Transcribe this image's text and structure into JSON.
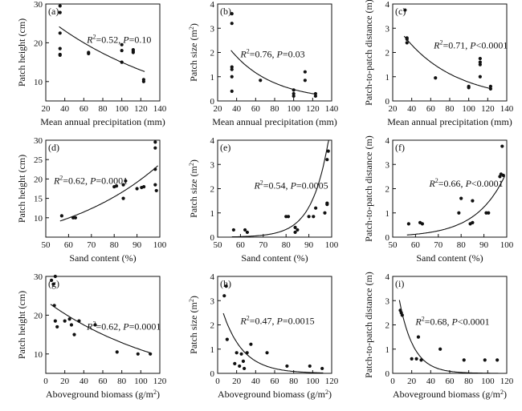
{
  "chart_data": [
    {
      "type": "scatter",
      "panel_label": "(a)",
      "xlabel": "Mean annual precipitation (mm)",
      "ylabel": "Patch height (cm)",
      "xlim": [
        20,
        140
      ],
      "ylim": [
        5,
        30
      ],
      "xticks": [
        20,
        40,
        60,
        80,
        100,
        120,
        140
      ],
      "yticks": [
        10,
        20,
        30
      ],
      "x": [
        35,
        35,
        35,
        35,
        35,
        35,
        65,
        65,
        100,
        100,
        100,
        112,
        112,
        112,
        123,
        123
      ],
      "y": [
        29.5,
        27.8,
        22.5,
        18.5,
        17,
        16.8,
        17.5,
        17.2,
        19.5,
        18,
        15,
        18.2,
        17.8,
        17.5,
        10.5,
        10
      ],
      "fit": {
        "type": "exponential",
        "a": 30.9,
        "b": -0.00725
      },
      "stat": {
        "r2_label": "R",
        "r2_sup": "2",
        "r2_value": "=0.52, ",
        "p_label": "P",
        "p_value": "=0.10"
      },
      "grid": false,
      "legend": "none"
    },
    {
      "type": "scatter",
      "panel_label": "(b)",
      "xlabel": "Mean annual precipitation (mm)",
      "ylabel": "Patch size (m",
      "ylabel_sup": "2",
      "ylabel_tail": ")",
      "xlim": [
        20,
        140
      ],
      "ylim": [
        0,
        4
      ],
      "xticks": [
        20,
        40,
        60,
        80,
        100,
        120,
        140
      ],
      "yticks": [
        0,
        1,
        2,
        3,
        4
      ],
      "x": [
        35,
        35,
        35,
        35,
        35,
        35,
        65,
        100,
        100,
        100,
        112,
        112,
        123,
        123
      ],
      "y": [
        3.6,
        3.2,
        1.4,
        1.3,
        1.0,
        0.4,
        0.85,
        0.45,
        0.3,
        0.2,
        1.2,
        0.85,
        0.3,
        0.2
      ],
      "fit": {
        "type": "exponential",
        "a": 4.49,
        "b": -0.0225
      },
      "stat": {
        "r2_label": "R",
        "r2_sup": "2",
        "r2_value": "=0.76, ",
        "p_label": "P",
        "p_value": "=0.03"
      },
      "grid": false,
      "legend": "none"
    },
    {
      "type": "scatter",
      "panel_label": "(c)",
      "xlabel": "Mean annual precipitation (mm)",
      "ylabel": "Patch-to-patch distance (m)",
      "xlim": [
        20,
        140
      ],
      "ylim": [
        0,
        4
      ],
      "xticks": [
        20,
        40,
        60,
        80,
        100,
        120,
        140
      ],
      "yticks": [
        0,
        1,
        2,
        3,
        4
      ],
      "x": [
        33,
        35,
        35,
        35,
        65,
        100,
        100,
        112,
        112,
        112,
        112,
        123,
        123
      ],
      "y": [
        3.75,
        2.6,
        2.55,
        2.4,
        0.95,
        0.6,
        0.55,
        1.75,
        1.6,
        1.5,
        1.0,
        0.6,
        0.5
      ],
      "fit": {
        "type": "exponential",
        "a": 4.79,
        "b": -0.0182
      },
      "stat": {
        "r2_label": "R",
        "r2_sup": "2",
        "r2_value": "=0.71, ",
        "p_label": "P",
        "p_value": "<0.0001"
      },
      "grid": false,
      "legend": "none"
    },
    {
      "type": "scatter",
      "panel_label": "(d)",
      "xlabel": "Sand content (%)",
      "ylabel": "Patch height (cm)",
      "xlim": [
        50,
        100
      ],
      "ylim": [
        5,
        30
      ],
      "xticks": [
        50,
        60,
        70,
        80,
        90,
        100
      ],
      "yticks": [
        10,
        15,
        20,
        25,
        30
      ],
      "x": [
        57,
        62,
        63,
        80,
        81,
        84,
        84,
        85,
        90,
        92,
        93,
        98,
        98,
        98,
        98,
        98.5
      ],
      "y": [
        10.5,
        10,
        10,
        18,
        18.2,
        18.5,
        15,
        19.5,
        17.5,
        17.8,
        18,
        29.5,
        28,
        22.5,
        18.5,
        17
      ],
      "fit": {
        "type": "exponential",
        "a": 2.67,
        "b": 0.0219
      },
      "stat": {
        "r2_label": "R",
        "r2_sup": "2",
        "r2_value": "=0.62, ",
        "p_label": "P",
        "p_value": "=0.0001"
      },
      "grid": false,
      "legend": "none"
    },
    {
      "type": "scatter",
      "panel_label": "(e)",
      "xlabel": "Sand content (%)",
      "ylabel": "Patch size (m",
      "ylabel_sup": "2",
      "ylabel_tail": ")",
      "xlim": [
        50,
        100
      ],
      "ylim": [
        0,
        4
      ],
      "xticks": [
        50,
        60,
        70,
        80,
        90,
        100
      ],
      "yticks": [
        0,
        1,
        2,
        3,
        4
      ],
      "x": [
        57,
        62,
        63,
        80,
        81,
        84,
        84,
        85,
        90,
        92,
        93,
        97,
        98,
        98,
        98,
        98.5
      ],
      "y": [
        0.3,
        0.3,
        0.2,
        0.85,
        0.85,
        0.4,
        0.2,
        0.3,
        0.85,
        0.85,
        1.2,
        1.0,
        1.4,
        1.35,
        3.2,
        3.55
      ],
      "fit": {
        "type": "exponential",
        "a": 6e-06,
        "b": 0.136
      },
      "stat": {
        "r2_label": "R",
        "r2_sup": "2",
        "r2_value": "=0.54, ",
        "p_label": "P",
        "p_value": "=0.0005"
      },
      "grid": false,
      "legend": "none"
    },
    {
      "type": "scatter",
      "panel_label": "(f)",
      "xlabel": "Sand content (%)",
      "ylabel": "Patch-to-patch distance (m)",
      "xlim": [
        50,
        100
      ],
      "ylim": [
        0,
        4
      ],
      "xticks": [
        50,
        60,
        70,
        80,
        90,
        100
      ],
      "yticks": [
        0,
        1,
        2,
        3,
        4
      ],
      "x": [
        57,
        62,
        63,
        79,
        80,
        84,
        85,
        85,
        91,
        92,
        97,
        97.5,
        98,
        98.5
      ],
      "y": [
        0.55,
        0.6,
        0.55,
        1.0,
        1.6,
        0.55,
        0.6,
        1.5,
        1.0,
        1.0,
        2.5,
        2.6,
        3.75,
        2.55
      ],
      "fit": {
        "type": "exponential",
        "a": 0.00113,
        "b": 0.0778
      },
      "stat": {
        "r2_label": "R",
        "r2_sup": "2",
        "r2_value": "=0.66, ",
        "p_label": "P",
        "p_value": "<0.0001"
      },
      "grid": false,
      "legend": "none"
    },
    {
      "type": "scatter",
      "panel_label": "(g)",
      "xlabel": "Aboveground biomass (g/m",
      "xlabel_sup": "2",
      "xlabel_tail": ")",
      "ylabel": "Patch height (cm)",
      "xlim": [
        0,
        120
      ],
      "ylim": [
        5,
        30
      ],
      "xticks": [
        0,
        20,
        40,
        60,
        80,
        100,
        120
      ],
      "yticks": [
        10,
        20,
        30
      ],
      "x": [
        6,
        8,
        9,
        10,
        10,
        12,
        20,
        25,
        27,
        30,
        35,
        52,
        75,
        97,
        110
      ],
      "y": [
        29,
        28,
        22.5,
        30,
        18.5,
        17,
        18.5,
        19,
        17.5,
        15,
        18.5,
        17.5,
        10.5,
        10,
        10
      ],
      "fit": {
        "type": "exponential",
        "a": 23.7,
        "b": -0.0076
      },
      "stat": {
        "r2_label": "R",
        "r2_sup": "2",
        "r2_value": "=0.62, ",
        "p_label": "P",
        "p_value": "=0.0001"
      },
      "grid": false,
      "legend": "none"
    },
    {
      "type": "scatter",
      "panel_label": "(h)",
      "xlabel": "Aboveground biomass (g/m",
      "xlabel_sup": "2",
      "xlabel_tail": ")",
      "ylabel": "Patch size (m",
      "ylabel_sup": "2",
      "ylabel_tail": ")",
      "xlim": [
        0,
        120
      ],
      "ylim": [
        0,
        4
      ],
      "xticks": [
        0,
        20,
        40,
        60,
        80,
        100,
        120
      ],
      "yticks": [
        0,
        1,
        2,
        3,
        4
      ],
      "x": [
        7,
        9,
        10,
        18,
        20,
        23,
        25,
        27,
        28,
        31,
        35,
        52,
        73,
        97,
        110
      ],
      "y": [
        3.2,
        3.6,
        1.4,
        0.4,
        0.85,
        0.3,
        0.8,
        0.5,
        0.2,
        0.85,
        1.2,
        0.85,
        0.3,
        0.3,
        0.2
      ],
      "fit": {
        "type": "exponential",
        "a": 3.28,
        "b": -0.0467
      },
      "stat": {
        "r2_label": "R",
        "r2_sup": "2",
        "r2_value": "=0.47, ",
        "p_label": "P",
        "p_value": "=0.0015"
      },
      "grid": false,
      "legend": "none"
    },
    {
      "type": "scatter",
      "panel_label": "(i)",
      "xlabel": "Aboveground biomass (g/m",
      "xlabel_sup": "2",
      "xlabel_tail": ")",
      "ylabel": "Patch-to-patch distance (m)",
      "xlim": [
        0,
        120
      ],
      "ylim": [
        0,
        4
      ],
      "xticks": [
        0,
        20,
        40,
        60,
        80,
        100,
        120
      ],
      "yticks": [
        0,
        1,
        2,
        3,
        4
      ],
      "x": [
        8,
        9,
        10,
        20,
        25,
        27,
        30,
        50,
        75,
        97,
        110
      ],
      "y": [
        2.6,
        2.5,
        2.4,
        0.6,
        0.6,
        1.5,
        0.55,
        1.0,
        0.55,
        0.55,
        0.55
      ],
      "fit": {
        "type": "exponential",
        "a": 4.84,
        "b": -0.0672
      },
      "stat": {
        "r2_label": "R",
        "r2_sup": "2",
        "r2_value": "=0.68, ",
        "p_label": "P",
        "p_value": "<0.0001"
      },
      "grid": false,
      "legend": "none"
    }
  ]
}
